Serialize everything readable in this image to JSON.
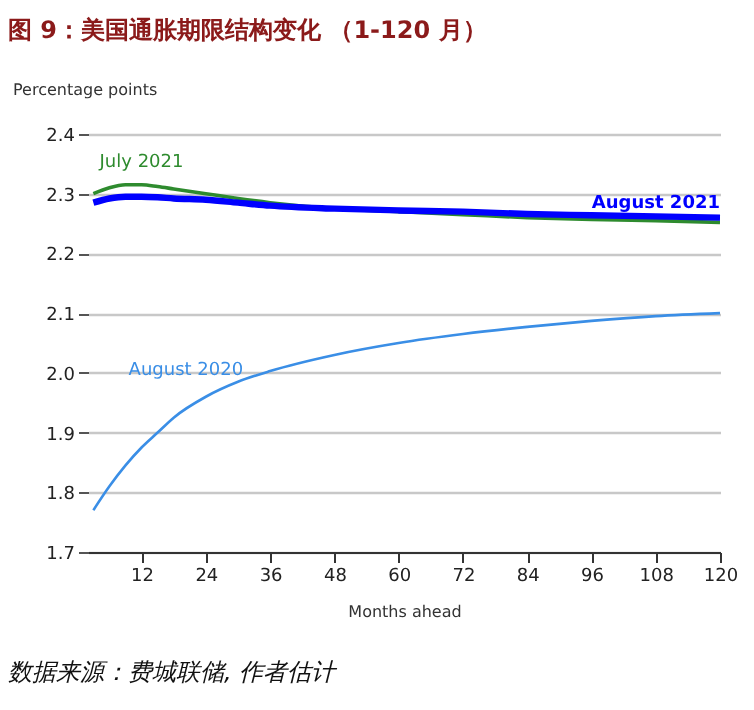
{
  "chart_data": {
    "type": "line",
    "title": "图 9：美国通胀期限结构变化 （1-120 月）",
    "xlabel": "Months ahead",
    "ylabel": "Percentage points",
    "x": [
      3,
      6,
      9,
      12,
      15,
      18,
      24,
      30,
      36,
      48,
      60,
      72,
      84,
      96,
      108,
      120
    ],
    "series": [
      {
        "name": "July 2021",
        "color": "#2e8b2e",
        "values": [
          2.3,
          2.31,
          2.315,
          2.315,
          2.312,
          2.308,
          2.3,
          2.292,
          2.285,
          2.275,
          2.27,
          2.265,
          2.26,
          2.257,
          2.255,
          2.252
        ]
      },
      {
        "name": "August 2021",
        "color": "#0000ff",
        "values": [
          2.285,
          2.292,
          2.295,
          2.295,
          2.294,
          2.292,
          2.29,
          2.285,
          2.28,
          2.275,
          2.272,
          2.27,
          2.266,
          2.264,
          2.262,
          2.26
        ]
      },
      {
        "name": "August 2020",
        "color": "#3a8ee6",
        "values": [
          1.77,
          1.81,
          1.845,
          1.875,
          1.9,
          1.925,
          1.96,
          1.985,
          2.003,
          2.03,
          2.05,
          2.065,
          2.077,
          2.087,
          2.095,
          2.1
        ]
      }
    ],
    "xlim": [
      2,
      120
    ],
    "ylim": [
      1.7,
      2.4
    ],
    "xticks": [
      12,
      24,
      36,
      48,
      60,
      72,
      84,
      96,
      108,
      120
    ],
    "yticks": [
      1.7,
      1.8,
      1.9,
      {
        "value": 2.0,
        "label": "2.0"
      },
      2.1,
      2.2,
      2.3,
      2.4
    ],
    "grid": "y",
    "annotations": [
      "数据来源：费城联储, 作者估计"
    ]
  }
}
